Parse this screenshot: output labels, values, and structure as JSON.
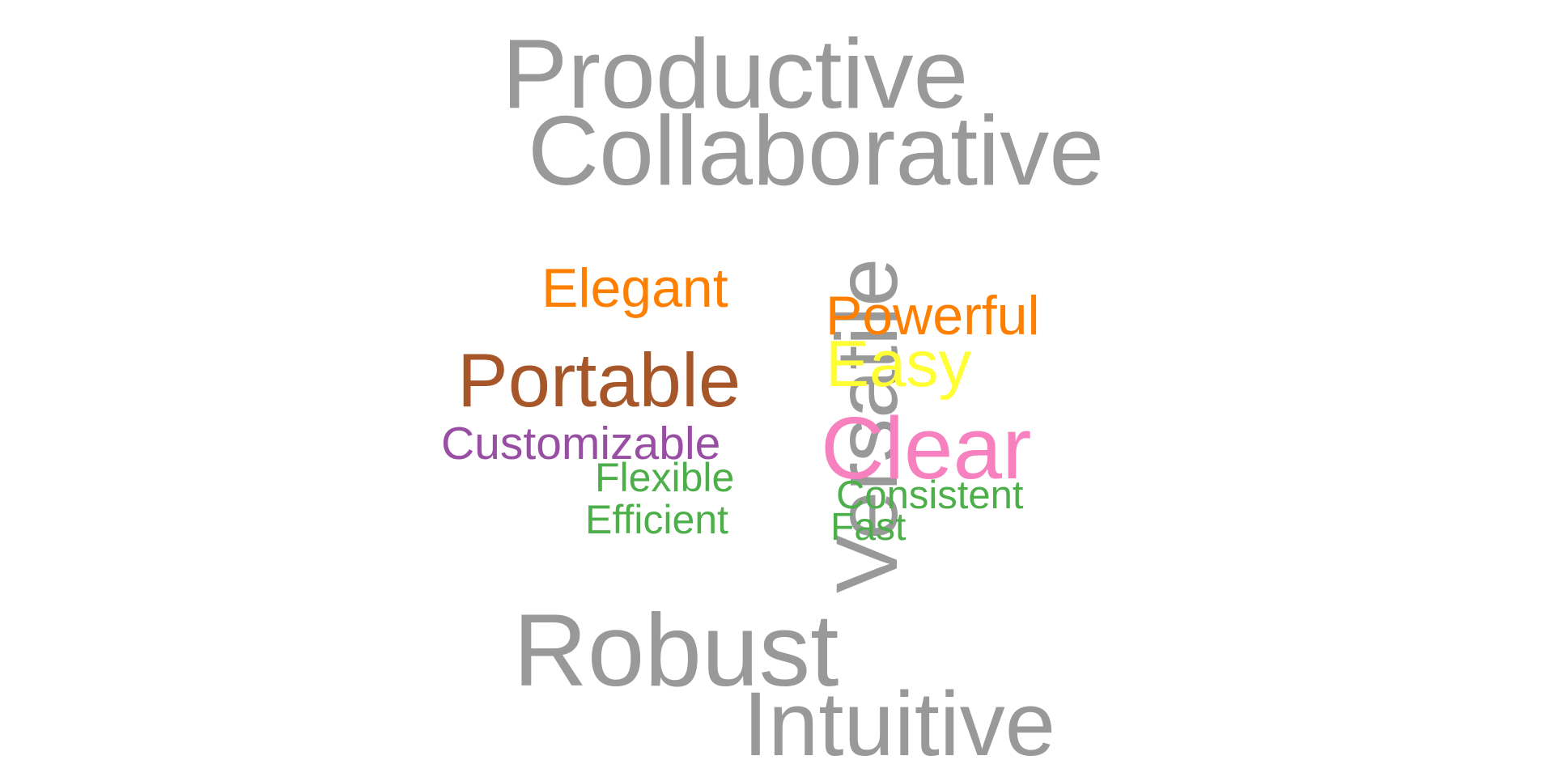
{
  "word_cloud": {
    "words": [
      {
        "key": "productive",
        "text": "Productive",
        "color": "#999999"
      },
      {
        "key": "collaborative",
        "text": "Collaborative",
        "color": "#999999"
      },
      {
        "key": "versatile",
        "text": "Versatile",
        "color": "#999999",
        "orientation": "vertical"
      },
      {
        "key": "elegant",
        "text": "Elegant",
        "color": "#FF7F00"
      },
      {
        "key": "powerful",
        "text": "Powerful",
        "color": "#FF7F00"
      },
      {
        "key": "easy",
        "text": "Easy",
        "color": "#FFFF33"
      },
      {
        "key": "portable",
        "text": "Portable",
        "color": "#A65628"
      },
      {
        "key": "customizable",
        "text": "Customizable",
        "color": "#984EA3"
      },
      {
        "key": "clear",
        "text": "Clear",
        "color": "#F781BF"
      },
      {
        "key": "flexible",
        "text": "Flexible",
        "color": "#4DAF4A"
      },
      {
        "key": "consistent",
        "text": "Consistent",
        "color": "#4DAF4A"
      },
      {
        "key": "efficient",
        "text": "Efficient",
        "color": "#4DAF4A"
      },
      {
        "key": "fast",
        "text": "Fast",
        "color": "#4DAF4A"
      },
      {
        "key": "robust",
        "text": "Robust",
        "color": "#999999"
      },
      {
        "key": "intuitive",
        "text": "Intuitive",
        "color": "#999999"
      }
    ]
  }
}
